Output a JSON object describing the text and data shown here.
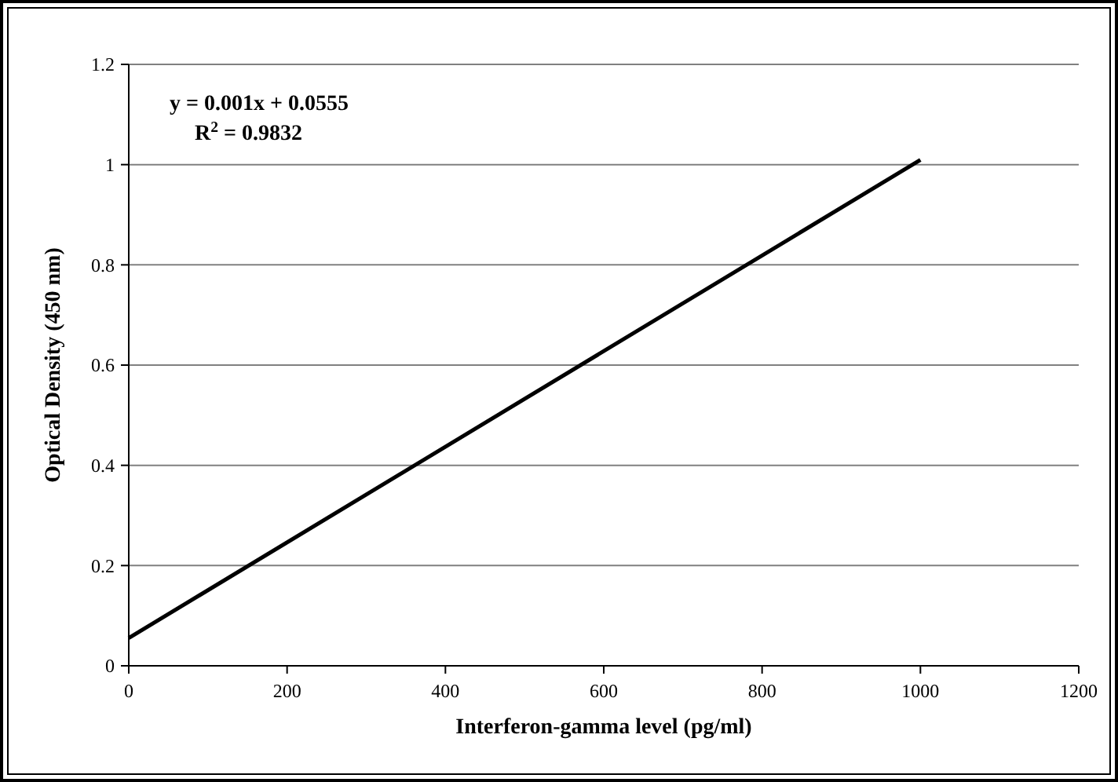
{
  "chart_data": {
    "type": "line",
    "xlabel": "Interferon-gamma level (pg/ml)",
    "ylabel": "Optical Density (450 nm)",
    "annotations": [
      "y = 0.001x + 0.0555",
      "R$^{2}$ = 0.9832"
    ],
    "series": [
      {
        "color": "#000000",
        "x": [
          0,
          1000
        ],
        "values": [
          0.0555,
          1.0095
        ]
      }
    ],
    "xlim": [
      0,
      1200
    ],
    "xticks": [
      0,
      200,
      400,
      600,
      800,
      1000,
      1200
    ],
    "ylim": [
      0,
      1.2
    ],
    "yticks": [
      0,
      0.2,
      0.4,
      0.6,
      0.8,
      1,
      1.2
    ],
    "grid": "y",
    "marker": "none",
    "line_style": "solid"
  }
}
